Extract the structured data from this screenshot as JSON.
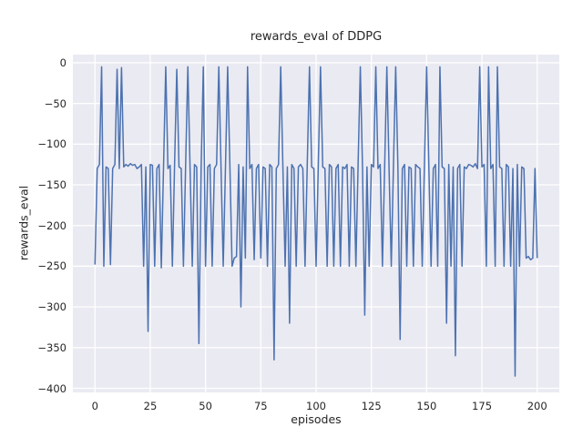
{
  "chart_data": {
    "type": "line",
    "title": "rewards_eval of DDPG",
    "xlabel": "episodes",
    "ylabel": "rewards_eval",
    "xlim": [
      -10,
      210
    ],
    "ylim": [
      -405,
      10
    ],
    "xticks": [
      0,
      25,
      50,
      75,
      100,
      125,
      150,
      175,
      200
    ],
    "xtick_labels": [
      "0",
      "25",
      "50",
      "75",
      "100",
      "125",
      "150",
      "175",
      "200"
    ],
    "yticks": [
      0,
      -50,
      -100,
      -150,
      -200,
      -250,
      -300,
      -350,
      -400
    ],
    "ytick_labels": [
      "0",
      "−50",
      "−100",
      "−150",
      "−200",
      "−250",
      "−300",
      "−350",
      "−400"
    ],
    "grid": true,
    "legend": "none",
    "x_start": 0,
    "x_step": 1,
    "series": [
      {
        "name": "rewards_eval",
        "values": [
          -248,
          -130,
          -125,
          -5,
          -250,
          -128,
          -130,
          -248,
          -130,
          -125,
          -8,
          -130,
          -6,
          -128,
          -125,
          -127,
          -124,
          -126,
          -125,
          -130,
          -128,
          -125,
          -250,
          -128,
          -330,
          -125,
          -126,
          -250,
          -130,
          -125,
          -252,
          -128,
          -5,
          -130,
          -126,
          -250,
          -125,
          -8,
          -128,
          -130,
          -250,
          -125,
          -5,
          -130,
          -250,
          -125,
          -128,
          -345,
          -130,
          -5,
          -250,
          -128,
          -125,
          -250,
          -130,
          -125,
          -5,
          -128,
          -250,
          -130,
          -5,
          -125,
          -250,
          -240,
          -238,
          -125,
          -300,
          -128,
          -240,
          -5,
          -130,
          -125,
          -242,
          -130,
          -125,
          -240,
          -128,
          -130,
          -250,
          -125,
          -128,
          -365,
          -130,
          -125,
          -5,
          -130,
          -250,
          -128,
          -320,
          -125,
          -130,
          -250,
          -128,
          -125,
          -130,
          -250,
          -125,
          -5,
          -128,
          -130,
          -250,
          -125,
          -5,
          -128,
          -130,
          -250,
          -125,
          -128,
          -250,
          -130,
          -125,
          -250,
          -128,
          -130,
          -125,
          -250,
          -128,
          -130,
          -250,
          -125,
          -5,
          -130,
          -310,
          -128,
          -250,
          -125,
          -128,
          -5,
          -130,
          -125,
          -250,
          -128,
          -5,
          -130,
          -250,
          -125,
          -5,
          -128,
          -340,
          -130,
          -125,
          -250,
          -128,
          -130,
          -250,
          -125,
          -128,
          -130,
          -250,
          -125,
          -5,
          -128,
          -250,
          -130,
          -125,
          -250,
          -5,
          -128,
          -130,
          -320,
          -125,
          -250,
          -128,
          -360,
          -130,
          -125,
          -250,
          -128,
          -130,
          -125,
          -126,
          -128,
          -124,
          -130,
          -5,
          -128,
          -125,
          -250,
          -5,
          -130,
          -125,
          -250,
          -5,
          -128,
          -130,
          -250,
          -125,
          -128,
          -250,
          -130,
          -385,
          -125,
          -250,
          -128,
          -130,
          -240,
          -238,
          -242,
          -240,
          -130,
          -240
        ]
      }
    ],
    "colors": {
      "line": "#4c72b0",
      "plot_background": "#eaeaf2",
      "grid": "#ffffff",
      "figure_background": "#ffffff",
      "text": "#262626"
    }
  }
}
